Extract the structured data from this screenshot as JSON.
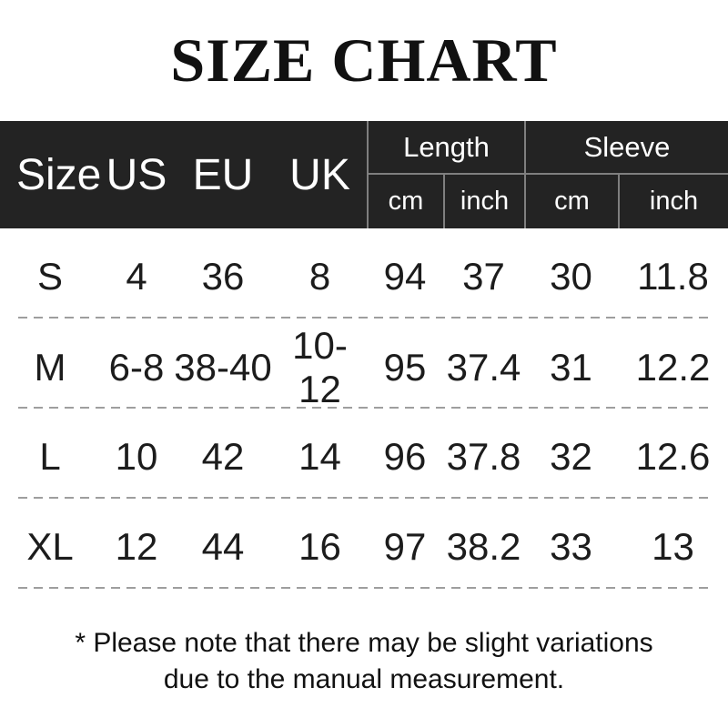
{
  "title": "SIZE CHART",
  "table": {
    "left_headers": [
      "Size",
      "US",
      "EU",
      "UK"
    ],
    "groups": [
      {
        "label": "Length",
        "units": [
          "cm",
          "inch"
        ]
      },
      {
        "label": "Sleeve",
        "units": [
          "cm",
          "inch"
        ]
      }
    ],
    "rows": [
      {
        "size": "S",
        "us": "4",
        "eu": "36",
        "uk": "8",
        "length_cm": "94",
        "length_inch": "37",
        "sleeve_cm": "30",
        "sleeve_inch": "11.8"
      },
      {
        "size": "M",
        "us": "6-8",
        "eu": "38-40",
        "uk": "10-12",
        "length_cm": "95",
        "length_inch": "37.4",
        "sleeve_cm": "31",
        "sleeve_inch": "12.2"
      },
      {
        "size": "L",
        "us": "10",
        "eu": "42",
        "uk": "14",
        "length_cm": "96",
        "length_inch": "37.8",
        "sleeve_cm": "32",
        "sleeve_inch": "12.6"
      },
      {
        "size": "XL",
        "us": "12",
        "eu": "44",
        "uk": "16",
        "length_cm": "97",
        "length_inch": "38.2",
        "sleeve_cm": "33",
        "sleeve_inch": "13"
      }
    ]
  },
  "note_line1": "* Please note that there may be slight variations",
  "note_line2": "due to the manual measurement.",
  "colors": {
    "page_bg": "#ffffff",
    "header_bg": "#232323",
    "header_text": "#ffffff",
    "border": "#7f7f7f",
    "dash": "#9e9e9e",
    "text": "#1a1a1a"
  }
}
